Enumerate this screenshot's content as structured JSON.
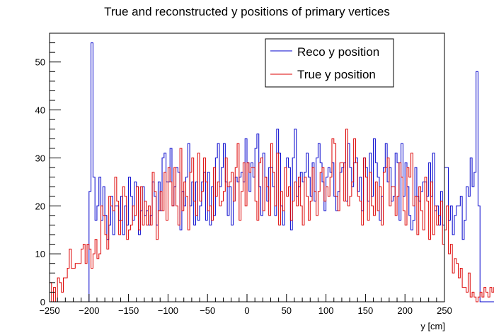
{
  "chart_data": {
    "type": "histogram",
    "title": "True and reconstructed y positions of primary vertices",
    "xlabel": "y [cm]",
    "ylabel": "",
    "xlim": [
      -250,
      250
    ],
    "ylim": [
      0,
      56
    ],
    "bin_width": 2.5,
    "x_ticks": [
      -250,
      -200,
      -150,
      -100,
      -50,
      0,
      50,
      100,
      150,
      200,
      250
    ],
    "x_tick_labels": [
      "−250",
      "−200",
      "−150",
      "−100",
      "−50",
      "0",
      "50",
      "100",
      "150",
      "200",
      "250"
    ],
    "y_ticks": [
      0,
      10,
      20,
      30,
      40,
      50
    ],
    "y_tick_labels": [
      "0",
      "10",
      "20",
      "30",
      "40",
      "50"
    ],
    "grid": false,
    "legend": {
      "position": "top-right"
    },
    "series": [
      {
        "name": "Reco y position",
        "color": "#0000cc",
        "x_start": -250,
        "values": [
          0,
          0,
          0,
          0,
          0,
          0,
          0,
          0,
          0,
          0,
          0,
          0,
          0,
          0,
          0,
          0,
          0,
          0,
          0,
          0,
          23,
          54,
          26,
          17,
          20,
          26,
          17,
          24,
          18,
          13,
          16,
          22,
          14,
          20,
          20,
          17,
          22,
          14,
          20,
          16,
          26,
          22,
          17,
          25,
          24,
          14,
          19,
          24,
          18,
          19,
          16,
          18,
          25,
          22,
          16,
          25,
          19,
          30,
          31,
          25,
          25,
          32,
          20,
          24,
          28,
          27,
          15,
          23,
          20,
          26,
          33,
          20,
          25,
          16,
          25,
          17,
          20,
          25,
          27,
          17,
          27,
          16,
          24,
          18,
          30,
          33,
          24,
          28,
          33,
          25,
          18,
          24,
          16,
          21,
          26,
          25,
          26,
          27,
          25,
          34,
          29,
          23,
          29,
          26,
          32,
          35,
          24,
          18,
          31,
          26,
          21,
          28,
          28,
          24,
          18,
          36,
          31,
          20,
          16,
          28,
          30,
          28,
          15,
          30,
          36,
          22,
          24,
          27,
          25,
          27,
          31,
          26,
          22,
          29,
          21,
          30,
          33,
          29,
          25,
          19,
          26,
          28,
          27,
          29,
          22,
          19,
          23,
          27,
          28,
          29,
          21,
          33,
          28,
          24,
          29,
          30,
          23,
          26,
          19,
          30,
          28,
          21,
          31,
          22,
          34,
          29,
          26,
          17,
          22,
          28,
          33,
          25,
          28,
          21,
          22,
          31,
          29,
          17,
          33,
          22,
          29,
          24,
          18,
          15,
          17,
          28,
          22,
          21,
          23,
          25,
          25,
          22,
          29,
          22,
          31,
          19,
          20,
          16,
          23,
          16,
          28,
          28,
          17,
          20,
          14,
          18,
          20,
          20,
          22,
          13,
          17,
          24,
          22,
          30,
          24,
          27,
          48,
          20,
          0,
          0,
          0,
          0,
          0,
          0,
          0,
          0,
          0,
          0,
          0,
          0,
          0,
          0,
          0,
          0,
          0,
          0,
          0,
          0
        ]
      },
      {
        "name": "True y position",
        "color": "#dd0000",
        "x_start": -250,
        "values": [
          4,
          0,
          3,
          0,
          5,
          4,
          2,
          5,
          5,
          7,
          11,
          7,
          7,
          8,
          8,
          8,
          11,
          12,
          8,
          12,
          11,
          7,
          10,
          13,
          9,
          10,
          20,
          18,
          14,
          11,
          22,
          20,
          19,
          26,
          21,
          14,
          17,
          24,
          22,
          13,
          15,
          16,
          20,
          18,
          24,
          15,
          24,
          16,
          21,
          16,
          20,
          16,
          27,
          23,
          13,
          19,
          23,
          19,
          27,
          17,
          28,
          25,
          20,
          28,
          20,
          16,
          32,
          19,
          25,
          22,
          15,
          27,
          30,
          21,
          18,
          31,
          21,
          23,
          30,
          25,
          19,
          20,
          17,
          28,
          22,
          25,
          20,
          21,
          23,
          30,
          24,
          25,
          27,
          21,
          28,
          33,
          17,
          23,
          29,
          20,
          29,
          27,
          28,
          28,
          21,
          17,
          29,
          30,
          19,
          26,
          24,
          18,
          33,
          27,
          20,
          31,
          16,
          23,
          19,
          28,
          22,
          24,
          17,
          21,
          25,
          20,
          26,
          20,
          16,
          26,
          22,
          17,
          21,
          28,
          23,
          18,
          23,
          27,
          28,
          21,
          24,
          22,
          26,
          34,
          33,
          22,
          19,
          29,
          29,
          21,
          36,
          20,
          22,
          25,
          34,
          29,
          22,
          21,
          16,
          30,
          26,
          17,
          27,
          20,
          18,
          25,
          19,
          24,
          16,
          27,
          28,
          30,
          20,
          24,
          24,
          18,
          22,
          29,
          26,
          19,
          16,
          28,
          26,
          31,
          20,
          22,
          14,
          24,
          19,
          15,
          26,
          21,
          13,
          25,
          14,
          20,
          16,
          18,
          21,
          12,
          15,
          20,
          10,
          12,
          6,
          9,
          8,
          5,
          7,
          3,
          3,
          2,
          6,
          1,
          2,
          1,
          0,
          1,
          2,
          1,
          3,
          2,
          1,
          3,
          2,
          3
        ]
      }
    ]
  }
}
